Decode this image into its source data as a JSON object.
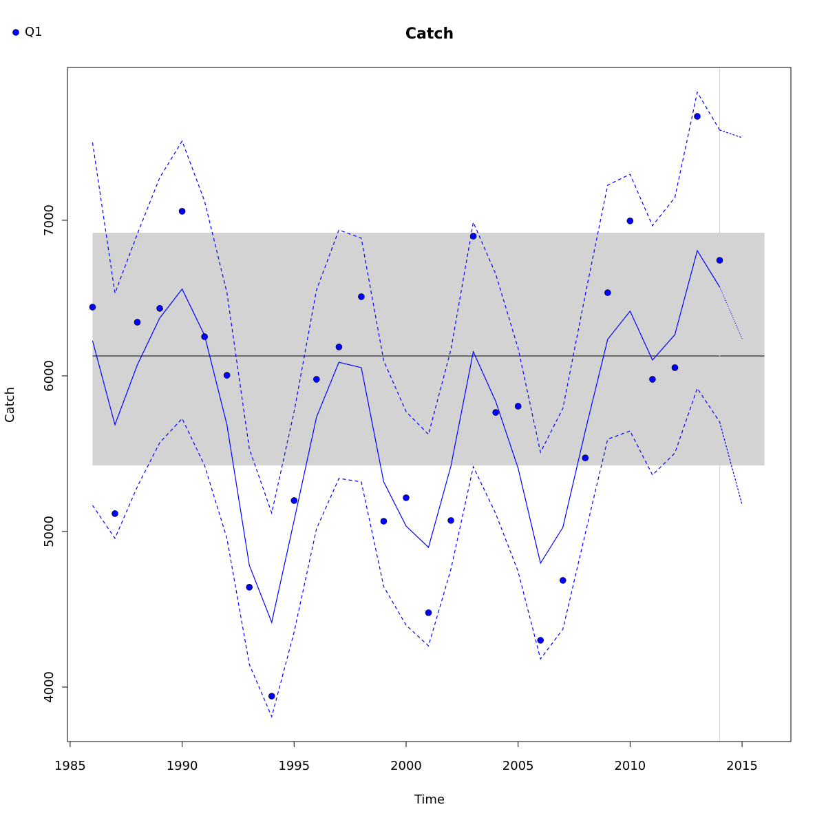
{
  "chart_data": {
    "type": "line",
    "title": "Catch",
    "xlabel": "Time",
    "ylabel": "Catch",
    "x": [
      1986,
      1987,
      1988,
      1989,
      1990,
      1991,
      1992,
      1993,
      1994,
      1995,
      1996,
      1997,
      1998,
      1999,
      2000,
      2001,
      2002,
      2003,
      2004,
      2005,
      2006,
      2007,
      2008,
      2009,
      2010,
      2011,
      2012,
      2013,
      2014,
      2015
    ],
    "series": [
      {
        "name": "Q1",
        "color": "#0000ff",
        "style": "points",
        "values": [
          6442,
          5115,
          6345,
          6434,
          7058,
          6252,
          6004,
          4642,
          3942,
          5199,
          5978,
          6186,
          6509,
          5066,
          5217,
          4478,
          5071,
          6898,
          5765,
          5805,
          4301,
          4686,
          5473,
          6535,
          6996,
          5978,
          6053,
          7668,
          6743,
          null
        ]
      },
      {
        "color": "#0000ff",
        "style": "solid",
        "values": [
          6226,
          5686,
          6071,
          6372,
          6558,
          6261,
          5686,
          4783,
          4416,
          5071,
          5735,
          6088,
          6053,
          5319,
          5035,
          4898,
          5420,
          6155,
          5836,
          5407,
          4796,
          5027,
          5646,
          6235,
          6416,
          6102,
          6265,
          6805,
          6571,
          6239
        ]
      },
      {
        "color": "#0000ff",
        "style": "dashed",
        "values": [
          7500,
          6531,
          6912,
          7274,
          7509,
          7124,
          6535,
          5531,
          5119,
          5770,
          6553,
          6938,
          6885,
          6097,
          5770,
          5624,
          6168,
          6987,
          6655,
          6177,
          5509,
          5792,
          6522,
          7226,
          7296,
          6965,
          7146,
          7823,
          7580,
          7531
        ]
      },
      {
        "color": "#0000ff",
        "style": "dashed",
        "values": [
          5168,
          4956,
          5288,
          5571,
          5726,
          5425,
          4956,
          4146,
          3810,
          4354,
          5018,
          5341,
          5319,
          4646,
          4398,
          4265,
          4757,
          5416,
          5115,
          4743,
          4181,
          4372,
          4987,
          5593,
          5646,
          5363,
          5504,
          5920,
          5704,
          5173
        ]
      }
    ],
    "band": {
      "y": [
        5425,
        6920
      ],
      "x": [
        1986,
        2016
      ],
      "color": "#d3d3d3"
    },
    "hline": 6128,
    "vline": 2014,
    "xlim": [
      1984.88,
      2017.18
    ],
    "ylim": [
      3650,
      7982
    ],
    "xticks": [
      1985,
      1990,
      1995,
      2000,
      2005,
      2010,
      2015
    ],
    "yticks": [
      4000,
      5000,
      6000,
      7000
    ],
    "legend": "top-left"
  }
}
